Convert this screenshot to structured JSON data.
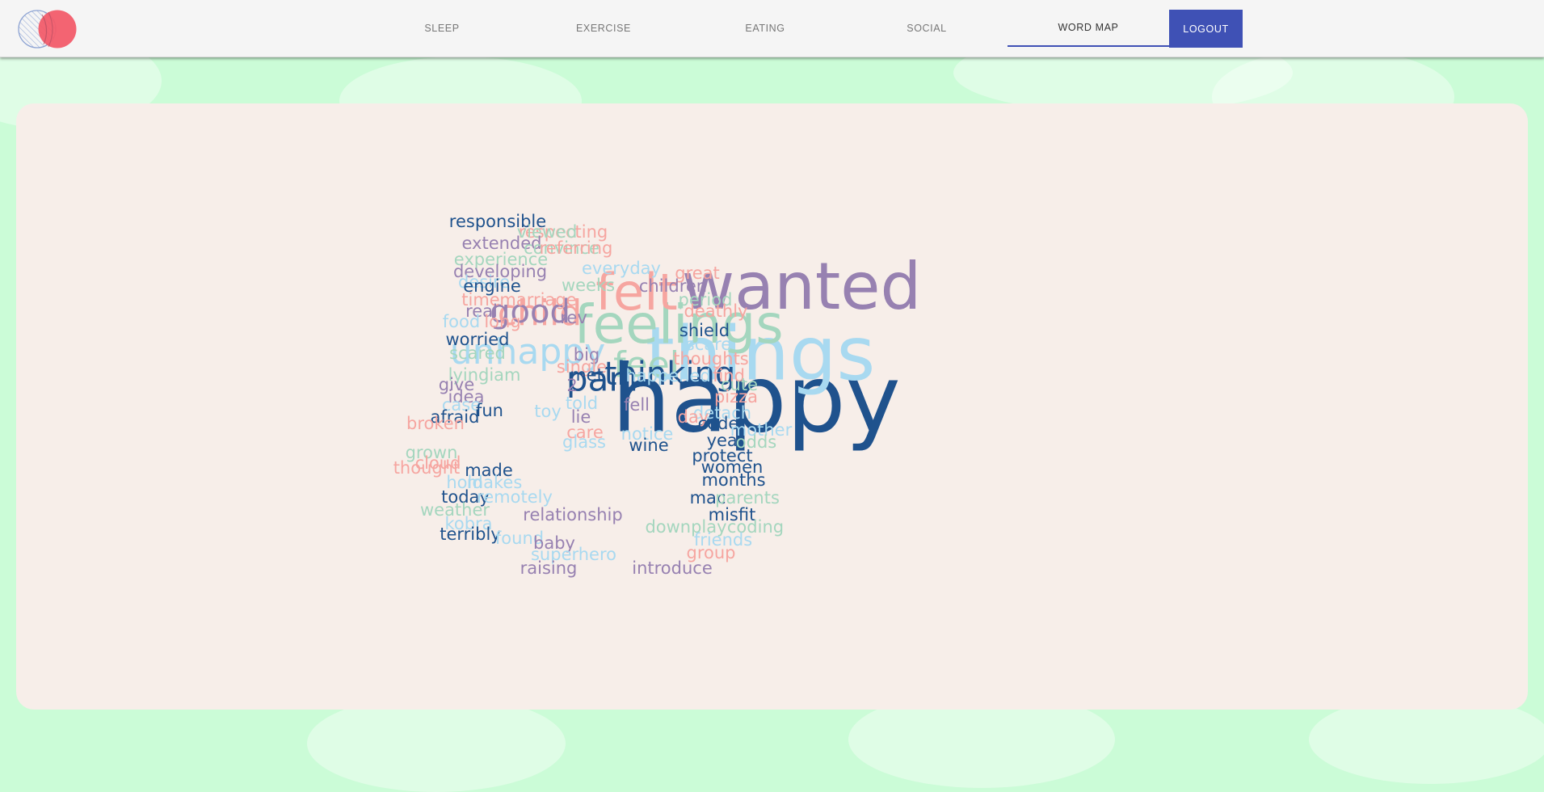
{
  "app": {
    "logo_icon": "logo-icon"
  },
  "nav": {
    "items": [
      {
        "label": "SLEEP",
        "id": "sleep"
      },
      {
        "label": "EXERCISE",
        "id": "exercise"
      },
      {
        "label": "EATING",
        "id": "eating"
      },
      {
        "label": "SOCIAL",
        "id": "social"
      },
      {
        "label": "WORD MAP",
        "id": "word-map",
        "active": true
      }
    ],
    "logout_label": "LOGOUT"
  },
  "colors": {
    "accent": "#3f51b5",
    "background": "#cbfcd7",
    "panel": "#f7eee9",
    "navy": "#1f528d",
    "sky": "#a8d9f0",
    "salmon": "#f6a5a0",
    "mauve": "#9781b1",
    "mint": "#a4d6be"
  },
  "word_map": {
    "words": [
      {
        "text": "happy",
        "color": "navy",
        "weight": 115
      },
      {
        "text": "things",
        "color": "sky",
        "weight": 92
      },
      {
        "text": "wanted",
        "color": "mauve",
        "weight": 80
      },
      {
        "text": "feelings",
        "color": "mint",
        "weight": 66
      },
      {
        "text": "felt",
        "color": "salmon",
        "weight": 62
      },
      {
        "text": "child",
        "color": "salmon",
        "weight": 44
      },
      {
        "text": "unhappy",
        "color": "sky",
        "weight": 44
      },
      {
        "text": "feel",
        "color": "mint",
        "weight": 44
      },
      {
        "text": "part",
        "color": "navy",
        "weight": 42
      },
      {
        "text": "good",
        "color": "mauve",
        "weight": 40
      },
      {
        "text": "thinking",
        "color": "navy",
        "weight": 40
      },
      {
        "text": "responsible",
        "color": "navy",
        "weight": 21
      },
      {
        "text": "respecting",
        "color": "salmon",
        "weight": 21
      },
      {
        "text": "viewed",
        "color": "mint",
        "weight": 21
      },
      {
        "text": "extended",
        "color": "mauve",
        "weight": 21
      },
      {
        "text": "convince",
        "color": "mint",
        "weight": 21
      },
      {
        "text": "referring",
        "color": "salmon",
        "weight": 21
      },
      {
        "text": "experience",
        "color": "mint",
        "weight": 21
      },
      {
        "text": "developing",
        "color": "mauve",
        "weight": 21
      },
      {
        "text": "everyday",
        "color": "sky",
        "weight": 21
      },
      {
        "text": "great",
        "color": "salmon",
        "weight": 21
      },
      {
        "text": "desire",
        "color": "sky",
        "weight": 21
      },
      {
        "text": "engine",
        "color": "navy",
        "weight": 21
      },
      {
        "text": "weeks",
        "color": "mint",
        "weight": 21
      },
      {
        "text": "children",
        "color": "mauve",
        "weight": 21
      },
      {
        "text": "time",
        "color": "salmon",
        "weight": 21
      },
      {
        "text": "marriage",
        "color": "salmon",
        "weight": 21
      },
      {
        "text": "period",
        "color": "mint",
        "weight": 21
      },
      {
        "text": "real",
        "color": "mauve",
        "weight": 21
      },
      {
        "text": "deathly",
        "color": "salmon",
        "weight": 21
      },
      {
        "text": "food",
        "color": "sky",
        "weight": 21
      },
      {
        "text": "long",
        "color": "salmon",
        "weight": 21
      },
      {
        "text": "rev",
        "color": "mauve",
        "weight": 21
      },
      {
        "text": "shield",
        "color": "navy",
        "weight": 21
      },
      {
        "text": "worried",
        "color": "navy",
        "weight": 21
      },
      {
        "text": "scare",
        "color": "sky",
        "weight": 21
      },
      {
        "text": "scared",
        "color": "mint",
        "weight": 21
      },
      {
        "text": "big",
        "color": "mauve",
        "weight": 21
      },
      {
        "text": "thoughts",
        "color": "salmon",
        "weight": 21
      },
      {
        "text": "single",
        "color": "salmon",
        "weight": 21
      },
      {
        "text": "lying",
        "color": "mint",
        "weight": 21
      },
      {
        "text": "liam",
        "color": "mint",
        "weight": 21
      },
      {
        "text": "met",
        "color": "navy",
        "weight": 21
      },
      {
        "text": "happened",
        "color": "sky",
        "weight": 21
      },
      {
        "text": "find",
        "color": "salmon",
        "weight": 21
      },
      {
        "text": "give",
        "color": "mauve",
        "weight": 21
      },
      {
        "text": "2",
        "color": "mauve",
        "weight": 21
      },
      {
        "text": "cute",
        "color": "mint",
        "weight": 21
      },
      {
        "text": "idea",
        "color": "mauve",
        "weight": 21
      },
      {
        "text": "pizza",
        "color": "salmon",
        "weight": 21
      },
      {
        "text": "case",
        "color": "sky",
        "weight": 21
      },
      {
        "text": "told",
        "color": "sky",
        "weight": 21
      },
      {
        "text": "fell",
        "color": "mauve",
        "weight": 21
      },
      {
        "text": "fun",
        "color": "navy",
        "weight": 21
      },
      {
        "text": "toy",
        "color": "sky",
        "weight": 21
      },
      {
        "text": "detach",
        "color": "sky",
        "weight": 21
      },
      {
        "text": "afraid",
        "color": "navy",
        "weight": 21
      },
      {
        "text": "lie",
        "color": "mauve",
        "weight": 21
      },
      {
        "text": "day",
        "color": "salmon",
        "weight": 21
      },
      {
        "text": "broken",
        "color": "salmon",
        "weight": 21
      },
      {
        "text": "code",
        "color": "navy",
        "weight": 21
      },
      {
        "text": "mother",
        "color": "sky",
        "weight": 21
      },
      {
        "text": "care",
        "color": "salmon",
        "weight": 21
      },
      {
        "text": "notice",
        "color": "sky",
        "weight": 21
      },
      {
        "text": "glass",
        "color": "sky",
        "weight": 21
      },
      {
        "text": "year",
        "color": "navy",
        "weight": 21
      },
      {
        "text": "odds",
        "color": "mint",
        "weight": 21
      },
      {
        "text": "wine",
        "color": "navy",
        "weight": 21
      },
      {
        "text": "grown",
        "color": "mint",
        "weight": 21
      },
      {
        "text": "protect",
        "color": "navy",
        "weight": 21
      },
      {
        "text": "cloud",
        "color": "salmon",
        "weight": 21
      },
      {
        "text": "women",
        "color": "navy",
        "weight": 21
      },
      {
        "text": "thought",
        "color": "salmon",
        "weight": 21
      },
      {
        "text": "made",
        "color": "navy",
        "weight": 21
      },
      {
        "text": "months",
        "color": "navy",
        "weight": 21
      },
      {
        "text": "hold",
        "color": "sky",
        "weight": 21
      },
      {
        "text": "makes",
        "color": "sky",
        "weight": 21
      },
      {
        "text": "mac",
        "color": "navy",
        "weight": 21
      },
      {
        "text": "today",
        "color": "navy",
        "weight": 21
      },
      {
        "text": "remotely",
        "color": "sky",
        "weight": 21
      },
      {
        "text": "parents",
        "color": "mint",
        "weight": 21
      },
      {
        "text": "weather",
        "color": "mint",
        "weight": 21
      },
      {
        "text": "relationship",
        "color": "mauve",
        "weight": 21
      },
      {
        "text": "misfit",
        "color": "navy",
        "weight": 21
      },
      {
        "text": "kobra",
        "color": "sky",
        "weight": 21
      },
      {
        "text": "downplay",
        "color": "mint",
        "weight": 21
      },
      {
        "text": "coding",
        "color": "mint",
        "weight": 21
      },
      {
        "text": "terribly",
        "color": "navy",
        "weight": 21
      },
      {
        "text": "found",
        "color": "sky",
        "weight": 21
      },
      {
        "text": "baby",
        "color": "mauve",
        "weight": 21
      },
      {
        "text": "friends",
        "color": "sky",
        "weight": 21
      },
      {
        "text": "group",
        "color": "salmon",
        "weight": 21
      },
      {
        "text": "superhero",
        "color": "sky",
        "weight": 21
      },
      {
        "text": "raising",
        "color": "mauve",
        "weight": 21
      },
      {
        "text": "introduce",
        "color": "mauve",
        "weight": 21
      }
    ]
  }
}
